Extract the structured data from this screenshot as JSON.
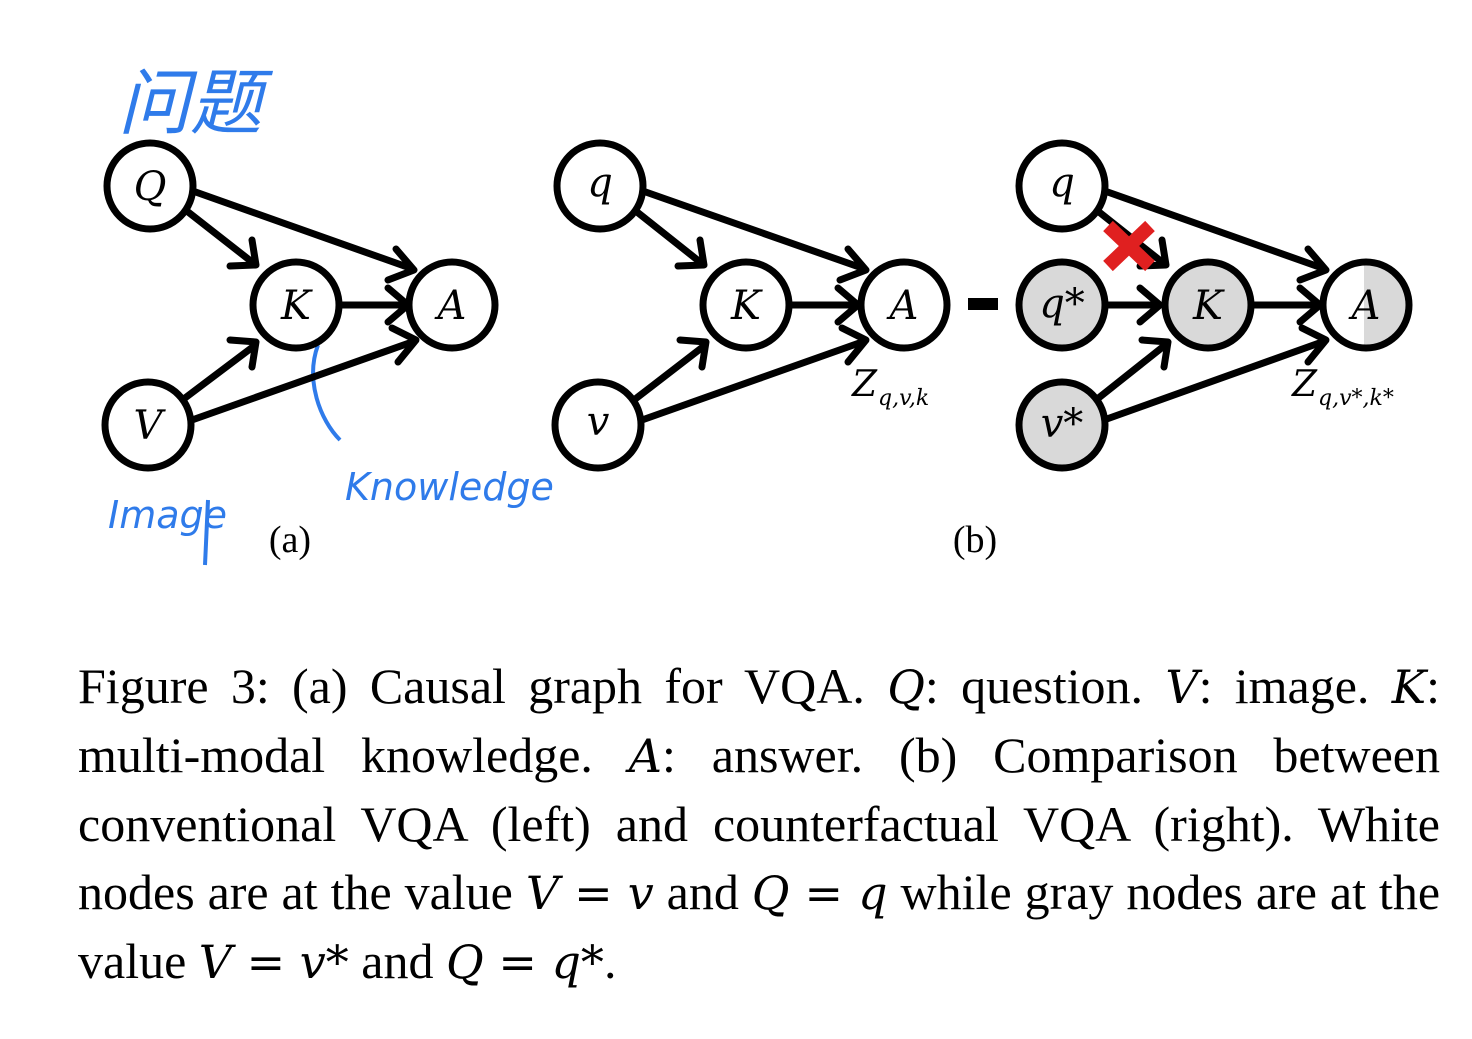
{
  "figure": {
    "panel_a": {
      "nodes": {
        "q": "Q",
        "k": "K",
        "a": "A",
        "v": "V"
      },
      "label": "(a)",
      "annotations": {
        "question_zh": "问题",
        "knowledge": "Knowledge",
        "image": "Image"
      }
    },
    "panel_b": {
      "left": {
        "nodes": {
          "q": "q",
          "k": "K",
          "a": "A",
          "v": "v"
        },
        "output_label": "Z",
        "output_subscript": "q,v,k"
      },
      "separator": "-",
      "right": {
        "nodes": {
          "q": "q",
          "qstar": "q*",
          "k": "K",
          "a": "A",
          "vstar": "v*"
        },
        "output_label": "Z",
        "output_subscript": "q,v*,k*",
        "intervention_mark": "✖"
      },
      "label": "(b)"
    },
    "colors": {
      "white_node": "#ffffff",
      "gray_node": "#d9d9d9",
      "cross": "#e02020",
      "handwriting": "#2f7bea"
    }
  },
  "caption": {
    "prefix": "Figure 3: (a) Causal graph for VQA.",
    "Q": "Q",
    "t1": ": question.",
    "V": "V",
    "t2": ": image.",
    "K": "K",
    "t3": ": multi-modal knowledge.",
    "A": "A",
    "t4": ": answer. (b) Comparison between conventional VQA (left) and counterfactual VQA (right). White nodes are at the value",
    "eq1": "V = v",
    "t5": "and",
    "eq2": "Q = q",
    "t6": "while gray nodes are at the value",
    "eq3": "V = v*",
    "t7": "and",
    "eq4": "Q = q*",
    "t8": "."
  }
}
